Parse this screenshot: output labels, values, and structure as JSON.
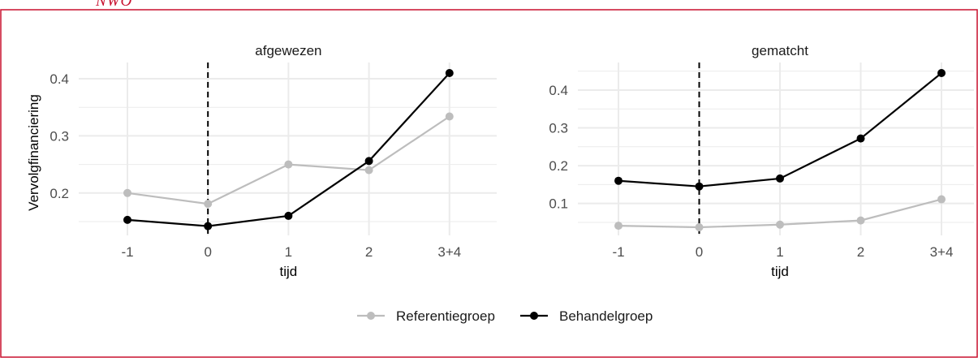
{
  "brand_text": "NWO",
  "brand_color": "#c8102e",
  "colors": {
    "behandel": "#000000",
    "referentie": "#bdbdbd",
    "grid": "#ebebeb",
    "axis_text": "#4d4d4d"
  },
  "legend": {
    "items": [
      {
        "label": "Referentiegroep",
        "series": "referentie"
      },
      {
        "label": "Behandelgroep",
        "series": "behandel"
      }
    ]
  },
  "chart_data": [
    {
      "type": "line",
      "title": "afgewezen",
      "xlabel": "tijd",
      "ylabel": "Vervolgfinanciering",
      "categories": [
        "-1",
        "0",
        "1",
        "2",
        "3+4"
      ],
      "vline_at_category": "0",
      "ylim": [
        0.14,
        0.41
      ],
      "yticks": [
        0.2,
        0.3,
        0.4
      ],
      "ytick_labels": [
        "0.2",
        "0.3",
        "0.4"
      ],
      "grid": true,
      "legend_position": "bottom",
      "series": [
        {
          "name": "Referentiegroep",
          "key": "referentie",
          "values": [
            0.2,
            0.181,
            0.25,
            0.24,
            0.334
          ]
        },
        {
          "name": "Behandelgroep",
          "key": "behandel",
          "values": [
            0.153,
            0.142,
            0.16,
            0.256,
            0.41
          ]
        }
      ]
    },
    {
      "type": "line",
      "title": "gematcht",
      "xlabel": "tijd",
      "ylabel": "",
      "categories": [
        "-1",
        "0",
        "1",
        "2",
        "3+4"
      ],
      "vline_at_category": "0",
      "ylim": [
        0.037,
        0.445
      ],
      "yticks": [
        0.1,
        0.2,
        0.3,
        0.4
      ],
      "ytick_labels": [
        "0.1",
        "0.2",
        "0.3",
        "0.4"
      ],
      "grid": true,
      "legend_position": "bottom",
      "series": [
        {
          "name": "Referentiegroep",
          "key": "referentie",
          "values": [
            0.041,
            0.037,
            0.044,
            0.055,
            0.111
          ]
        },
        {
          "name": "Behandelgroep",
          "key": "behandel",
          "values": [
            0.16,
            0.145,
            0.166,
            0.272,
            0.445
          ]
        }
      ]
    }
  ]
}
